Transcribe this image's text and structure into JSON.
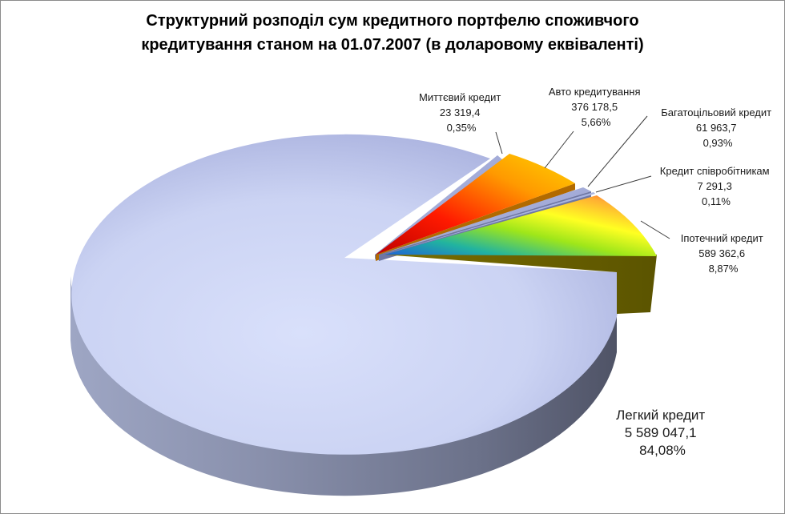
{
  "chart_data": {
    "type": "pie",
    "title_lines": [
      "Структурний розподіл сум кредитного портфелю споживчого",
      "кредитування станом на 01.07.2007  (в доларовому еквіваленті)"
    ],
    "slices": [
      {
        "name": "Іпотечний кредит",
        "value": "589 362,6",
        "percent": "8,87%",
        "share": 8.87,
        "color": "multicolor"
      },
      {
        "name": "Кредит співробітникам",
        "value": "7 291,3",
        "percent": "0,11%",
        "share": 0.11,
        "color": "#a9b4e0"
      },
      {
        "name": "Багатоцільовий кредит",
        "value": "61 963,7",
        "percent": "0,93%",
        "share": 0.93,
        "color": "#a9b4e0"
      },
      {
        "name": "Авто кредитування",
        "value": "376 178,5",
        "percent": "5,66%",
        "share": 5.66,
        "color": "red-yellow"
      },
      {
        "name": "Миттєвий кредит",
        "value": "23 319,4",
        "percent": "0,35%",
        "share": 0.35,
        "color": "#a9b4e0"
      },
      {
        "name": "Легкий кредит",
        "value": "5 589 047,1",
        "percent": "84,08%",
        "share": 84.08,
        "color": "#c9d2f3"
      }
    ]
  }
}
